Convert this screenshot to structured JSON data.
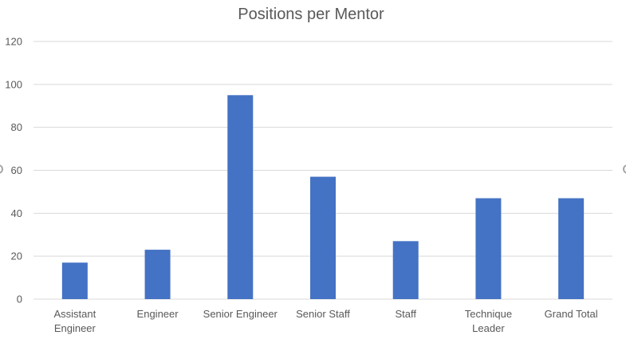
{
  "chart_data": {
    "type": "bar",
    "title": "Positions per Mentor",
    "categories": [
      "Assistant Engineer",
      "Engineer",
      "Senior Engineer",
      "Senior Staff",
      "Staff",
      "Technique Leader",
      "Grand Total"
    ],
    "category_lines": [
      [
        "Assistant",
        "Engineer"
      ],
      [
        "Engineer"
      ],
      [
        "Senior Engineer"
      ],
      [
        "Senior Staff"
      ],
      [
        "Staff"
      ],
      [
        "Technique",
        "Leader"
      ],
      [
        "Grand Total"
      ]
    ],
    "values": [
      17,
      23,
      95,
      57,
      27,
      47,
      47
    ],
    "ylim": [
      0,
      120
    ],
    "yticks": [
      0,
      20,
      40,
      60,
      80,
      100,
      120
    ],
    "xlabel": "",
    "ylabel": "",
    "grid": true,
    "legend": "none",
    "bar_color": "#4472c4",
    "grid_color": "#d9d9d9",
    "text_color": "#595959"
  }
}
